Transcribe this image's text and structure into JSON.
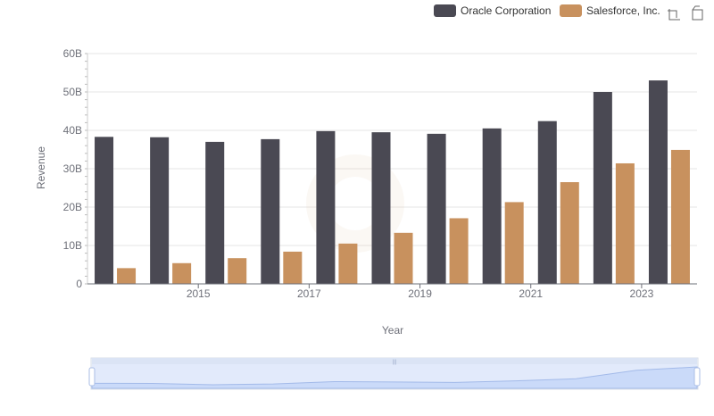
{
  "colors": {
    "oracle": "#4a4953",
    "salesforce": "#c8915e",
    "grid": "#e6e6e6",
    "axis_text": "#6e7079",
    "zoom_fill": "#d6e2f8",
    "zoom_border": "#a9bde6"
  },
  "toolbar": {
    "zoom_icon": "zoom-icon",
    "restore_icon": "restore-icon"
  },
  "chart_data": {
    "type": "bar",
    "title": "",
    "xlabel": "Year",
    "ylabel": "Revenue",
    "ylim": [
      0,
      60000000000
    ],
    "y_ticks": [
      "0",
      "10B",
      "20B",
      "30B",
      "40B",
      "50B",
      "60B"
    ],
    "x_tick_labels": [
      "2015",
      "2017",
      "2019",
      "2021",
      "2023"
    ],
    "categories": [
      "2014",
      "2015",
      "2016",
      "2017",
      "2018",
      "2019",
      "2020",
      "2021",
      "2022",
      "2023",
      "2024"
    ],
    "grid": true,
    "legend_position": "top-right",
    "series": [
      {
        "name": "Oracle Corporation",
        "values": [
          38300000000,
          38200000000,
          37000000000,
          37700000000,
          39800000000,
          39500000000,
          39100000000,
          40500000000,
          42400000000,
          50000000000,
          53000000000
        ]
      },
      {
        "name": "Salesforce, Inc.",
        "values": [
          4100000000,
          5400000000,
          6700000000,
          8400000000,
          10500000000,
          13300000000,
          17100000000,
          21300000000,
          26500000000,
          31400000000,
          34900000000
        ]
      }
    ]
  }
}
